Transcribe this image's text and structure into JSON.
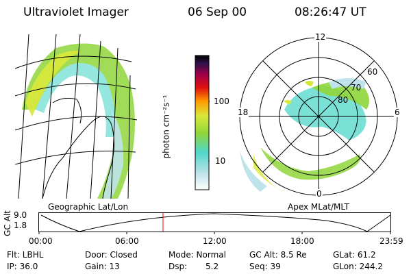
{
  "header": {
    "instrument": "Ultraviolet Imager",
    "date": "06 Sep 00",
    "time": "08:26:47 UT"
  },
  "colorbar": {
    "unit_label": "photon cm⁻²s⁻¹",
    "ticks": [
      "100",
      "10"
    ]
  },
  "polar_plot": {
    "mlt_labels": [
      "12",
      "18",
      "6",
      "0"
    ],
    "lat_labels": [
      "60",
      "70",
      "80"
    ]
  },
  "projection_labels": {
    "left": "Geographic Lat/Lon",
    "right": "Apex  MLat/MLT"
  },
  "altitude_plot": {
    "ylabel": "GC Alt",
    "yticks": [
      "9.0",
      "1.8"
    ],
    "xticks": [
      "00:00",
      "06:00",
      "12:00",
      "18:00",
      "23:59"
    ],
    "marker_time": "08:26:47"
  },
  "footer": {
    "row1": {
      "flt": "Flt: LBHL",
      "door": "Door: Closed",
      "mode": "Mode: Normal",
      "gc_alt": "GC Alt: 8.5 Re",
      "glat": "GLat:  61.2"
    },
    "row2": {
      "ip": "IP: 36.0",
      "gain": "Gain: 13",
      "dsp_label": "Dsp:",
      "dsp_value": "5.2",
      "seq": "Seq: 39",
      "glon": "GLon: 244.2"
    }
  },
  "colors": {
    "aurora_green": "#8fd63a",
    "aurora_yellow": "#d8e83a",
    "aurora_cyan": "#4fd6c8",
    "aurora_pale": "#bfe3ea",
    "marker_red": "#ff0000"
  }
}
